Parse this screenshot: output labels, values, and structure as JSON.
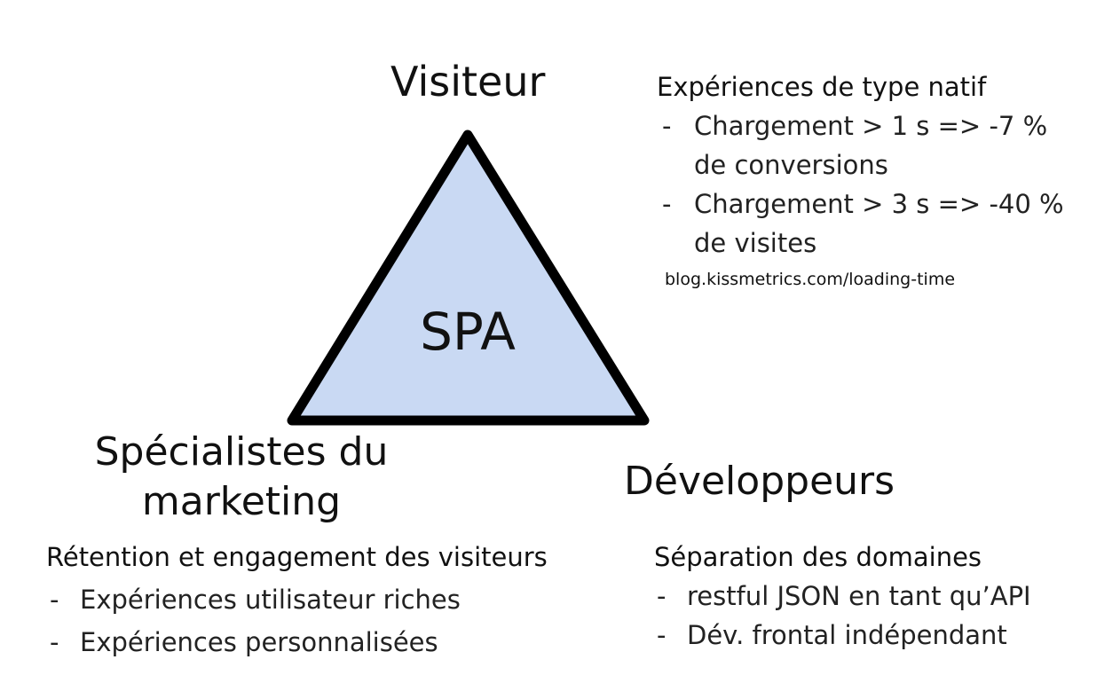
{
  "triangle": {
    "label": "SPA",
    "fill_color": "#c9d9f3",
    "stroke_color": "#000000"
  },
  "vertices": {
    "visitor": "Visiteur",
    "marketing": "Spécialistes du marketing",
    "developers": "Développeurs"
  },
  "native_experiences": {
    "heading": "Expériences de type natif",
    "items": [
      "Chargement > 1 s => -7 % de conversions",
      "Chargement > 3 s => -40 % de visites"
    ],
    "source": "blog.kissmetrics.com/loading-time"
  },
  "retention": {
    "heading": "Rétention et engagement des visiteurs",
    "items": [
      "Expériences utilisateur riches",
      "Expériences personnalisées"
    ]
  },
  "separation": {
    "heading": "Séparation des domaines",
    "items": [
      "restful JSON en tant qu’API",
      "Dév. frontal indépendant"
    ]
  },
  "bullet_marker": "-"
}
